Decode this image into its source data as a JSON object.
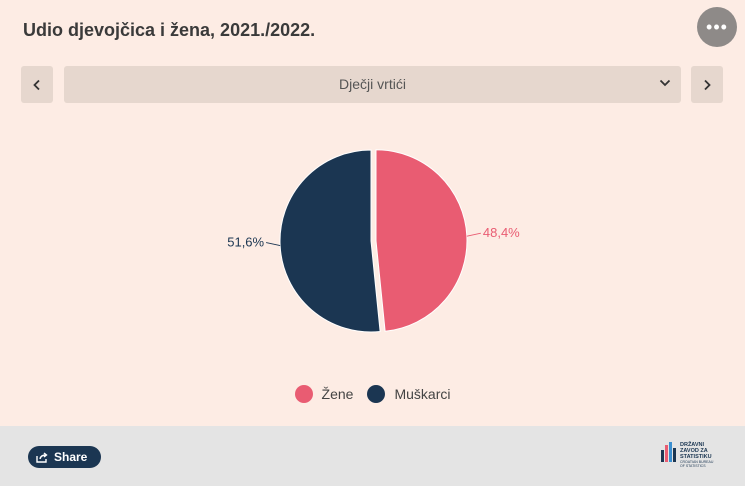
{
  "title": "Udio djevojčica i žena, 2021./2022.",
  "menu": {
    "icon": "more-horizontal-icon",
    "label": "•••"
  },
  "selector": {
    "selected": "Dječji vrtići",
    "prev_icon": "chevron-left-icon",
    "next_icon": "chevron-right-icon",
    "dropdown_icon": "chevron-down-icon"
  },
  "chart_data": {
    "type": "pie",
    "slices": [
      {
        "name": "Žene",
        "value": 48.4,
        "label": "48,4%",
        "color": "#e95c72"
      },
      {
        "name": "Muškarci",
        "value": 51.6,
        "label": "51,6%",
        "color": "#1b3652"
      }
    ],
    "legend": {
      "position": "bottom-center"
    }
  },
  "footer": {
    "share_label": "Share",
    "share_icon": "share-icon",
    "logo_text": "DRŽAVNI\nZAVOD ZA\nSTATISTIKU",
    "logo_subtext": "CROATIAN BUREAU\nOF STATISTICS"
  }
}
